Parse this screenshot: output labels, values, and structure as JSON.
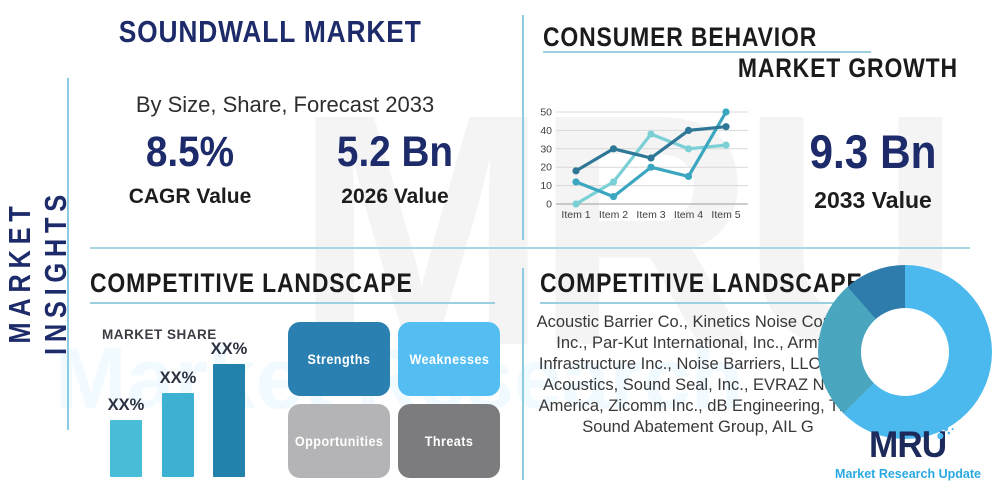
{
  "page": {
    "vertical_label": "MARKET INSIGHTS",
    "title": "SOUNDWALL MARKET",
    "subtitle": "By Size, Share, Forecast 2033"
  },
  "stats": {
    "cagr": {
      "value": "8.5%",
      "label": "CAGR Value"
    },
    "y2026": {
      "value": "5.2 Bn",
      "label": "2026 Value"
    },
    "y2033": {
      "value": "9.3 Bn",
      "label": "2033 Value"
    }
  },
  "sections": {
    "consumer_behavior": "CONSUMER BEHAVIOR",
    "market_growth": "MARKET GROWTH",
    "competitive_landscape_left": "COMPETITIVE LANDSCAPE",
    "competitive_landscape_right": "COMPETITIVE LANDSCAPE",
    "market_share": "MARKET SHARE"
  },
  "swot": [
    {
      "label": "Strengths",
      "color": "#2a80b0"
    },
    {
      "label": "Weaknesses",
      "color": "#54bdf2"
    },
    {
      "label": "Opportunities",
      "color": "#b4b4b6"
    },
    {
      "label": "Threats",
      "color": "#7c7c7e"
    }
  ],
  "companies": "Acoustic Barrier Co., Kinetics Noise Control, Inc., Par-Kut International, Inc., Armtec Infrastructure Inc., Noise Barriers, LLC, IAC Acoustics, Sound Seal, Inc., EVRAZ North America, Zicomm Inc., dB Engineering, The Sound Abatement Group, AIL G",
  "logo": {
    "text": "MRU",
    "tagline": "Market Research Update",
    "navy": "#1d2a5c",
    "blue": "#29a9e1"
  },
  "watermark": {
    "gray_text": "MRU",
    "blue_text": "Market Research"
  },
  "accent_colors": {
    "divider": "#abd5e5",
    "underline": "#9bcede",
    "navy": "#1d2b6b"
  },
  "chart_data": [
    {
      "id": "market-growth-line",
      "type": "line",
      "title": "MARKET GROWTH",
      "x": [
        "Item 1",
        "Item 2",
        "Item 3",
        "Item 4",
        "Item 5"
      ],
      "series": [
        {
          "name": "series-dark-blue",
          "color": "#2e7796",
          "values": [
            18,
            30,
            25,
            40,
            42
          ]
        },
        {
          "name": "series-teal",
          "color": "#3aa6bf",
          "values": [
            12,
            4,
            20,
            15,
            50
          ]
        },
        {
          "name": "series-light-cyan",
          "color": "#7bd0d6",
          "values": [
            0,
            12,
            38,
            30,
            32
          ]
        }
      ],
      "ylim": [
        0,
        50
      ],
      "yticks": [
        0,
        10,
        20,
        30,
        40,
        50
      ],
      "grid": true,
      "legend": "none"
    },
    {
      "id": "market-share-bar",
      "type": "bar",
      "title": "MARKET SHARE",
      "categories": [
        "bar-1",
        "bar-2",
        "bar-3"
      ],
      "labels": [
        "XX%",
        "XX%",
        "XX%"
      ],
      "relative_heights": [
        0.5,
        0.74,
        1.0
      ],
      "colors": [
        "#49bdd8",
        "#3cb1d2",
        "#2382ab"
      ],
      "ylabel": "",
      "xlabel": ""
    },
    {
      "id": "competitive-donut",
      "type": "pie",
      "slices": [
        {
          "label": "segment-light-blue",
          "value": 62.5,
          "color": "#4cb9ee"
        },
        {
          "label": "segment-teal",
          "value": 26.0,
          "color": "#4aa6be"
        },
        {
          "label": "segment-dark-blue",
          "value": 11.5,
          "color": "#2d7cab"
        }
      ]
    }
  ]
}
